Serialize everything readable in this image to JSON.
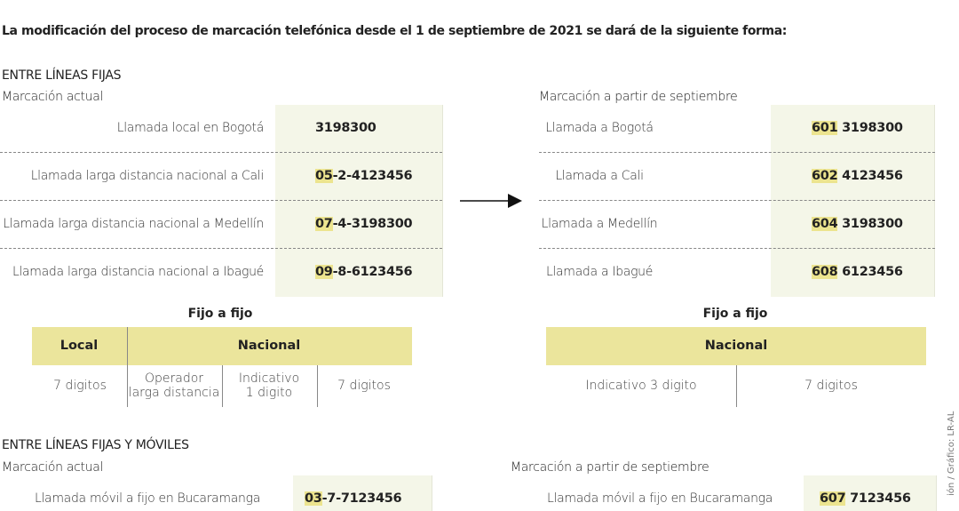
{
  "title": "La modificación del proceso de marcación telefónica desde el 1 de septiembre de 2021 se dará de la siguiente forma:",
  "fijas": {
    "heading": "ENTRE LÍNEAS FIJAS",
    "current_label": "Marcación actual",
    "new_label": "Marcación a partir de septiembre",
    "current_rows": [
      {
        "label": "Llamada local en Bogotá",
        "prefix": "",
        "number": "3198300"
      },
      {
        "label": "Llamada larga distancia  nacional a Cali",
        "prefix": "05",
        "number": "-2-4123456"
      },
      {
        "label": "Llamada larga distancia nacional a Medellín",
        "prefix": "07",
        "number": "-4-3198300"
      },
      {
        "label": "Llamada larga distancia nacional a Ibagué",
        "prefix": "09",
        "number": "-8-6123456"
      }
    ],
    "new_rows": [
      {
        "label": "Llamada a Bogotá",
        "prefix": "601",
        "number": " 3198300"
      },
      {
        "label": "Llamada a Cali",
        "prefix": "602",
        "number": " 4123456"
      },
      {
        "label": "Llamada a Medellín",
        "prefix": "604",
        "number": " 3198300"
      },
      {
        "label": "Llamada a Ibagué",
        "prefix": "608",
        "number": " 6123456"
      }
    ],
    "old_scheme": {
      "title": "Fijo a fijo",
      "local": "Local",
      "nacional": "Nacional",
      "cells": [
        "7 digitos",
        "Operador\nlarga distancia",
        "Indicativo\n1 digito",
        "7 digitos"
      ]
    },
    "new_scheme": {
      "title": "Fijo a fijo",
      "nacional": "Nacional",
      "cells": [
        "Indicativo 3 digito",
        "7 digitos"
      ]
    }
  },
  "moviles": {
    "heading": "ENTRE LÍNEAS FIJAS Y MÓVILES",
    "current_label": "Marcación actual",
    "new_label": "Marcación a partir de septiembre",
    "current_row": {
      "label": "Llamada móvil a fijo en Bucaramanga",
      "prefix": "03",
      "number": "-7-7123456"
    },
    "new_row": {
      "label": "Llamada móvil a fijo en Bucaramanga",
      "prefix": "607",
      "number": " 7123456"
    }
  },
  "credit": "ión / Gráfico: LR-AL",
  "colors": {
    "highlight": "#ece48f",
    "panel": "#f4f6e8",
    "band": "#ebe59c"
  }
}
